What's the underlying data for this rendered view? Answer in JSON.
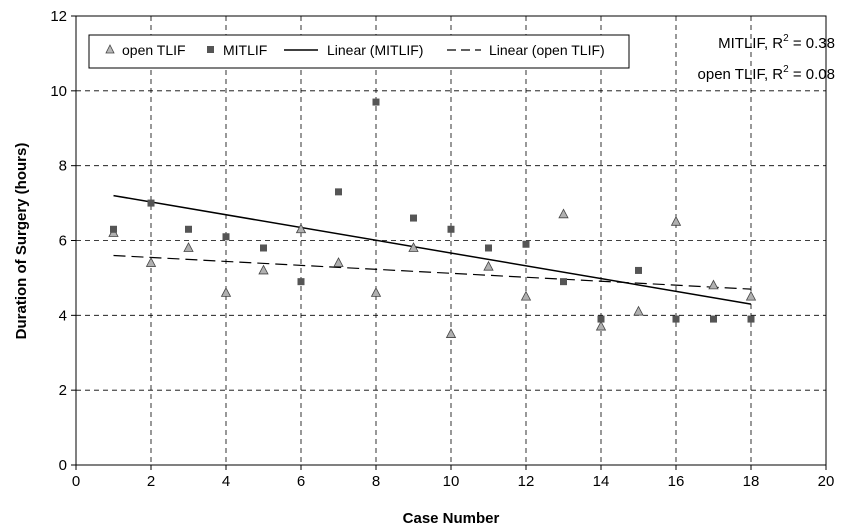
{
  "chart_data": {
    "type": "scatter",
    "xlabel": "Case Number",
    "ylabel": "Duration of Surgery (hours)",
    "xlim": [
      0,
      20
    ],
    "ylim": [
      0,
      12
    ],
    "x_ticks": [
      "0",
      "2",
      "4",
      "6",
      "8",
      "10",
      "12",
      "14",
      "16",
      "18",
      "20"
    ],
    "y_ticks": [
      "0",
      "2",
      "4",
      "6",
      "8",
      "10",
      "12"
    ],
    "grid": true,
    "legend_position": "top-left",
    "series": [
      {
        "name": "open TLIF",
        "marker": "triangle",
        "color": "#b0b0b0",
        "x": [
          1,
          2,
          3,
          4,
          5,
          6,
          7,
          8,
          9,
          10,
          11,
          12,
          13,
          14,
          15,
          16,
          17,
          18
        ],
        "y": [
          6.2,
          5.4,
          5.8,
          4.6,
          5.2,
          6.3,
          5.4,
          4.6,
          5.8,
          3.5,
          5.3,
          4.5,
          6.7,
          3.7,
          4.1,
          6.5,
          4.8,
          4.5
        ]
      },
      {
        "name": "MITLIF",
        "marker": "square",
        "color": "#555555",
        "x": [
          1,
          2,
          3,
          4,
          5,
          6,
          7,
          8,
          9,
          10,
          11,
          12,
          13,
          14,
          15,
          16,
          17,
          18
        ],
        "y": [
          6.3,
          7.0,
          6.3,
          6.1,
          5.8,
          4.9,
          7.3,
          9.7,
          6.6,
          6.3,
          5.8,
          5.9,
          4.9,
          3.9,
          5.2,
          3.9,
          3.9,
          3.9
        ]
      }
    ],
    "trendlines": [
      {
        "name": "Linear (MITLIF)",
        "style": "solid",
        "x": [
          1,
          18
        ],
        "y": [
          7.2,
          4.3
        ]
      },
      {
        "name": "Linear (open TLIF)",
        "style": "dashed",
        "x": [
          1,
          18
        ],
        "y": [
          5.6,
          4.7
        ]
      }
    ],
    "annotations": [
      {
        "label": "MITLIF, R",
        "sup": "2",
        "value": " = 0.38"
      },
      {
        "label": "open TLIF, R",
        "sup": "2",
        "value": " = 0.08"
      }
    ]
  }
}
